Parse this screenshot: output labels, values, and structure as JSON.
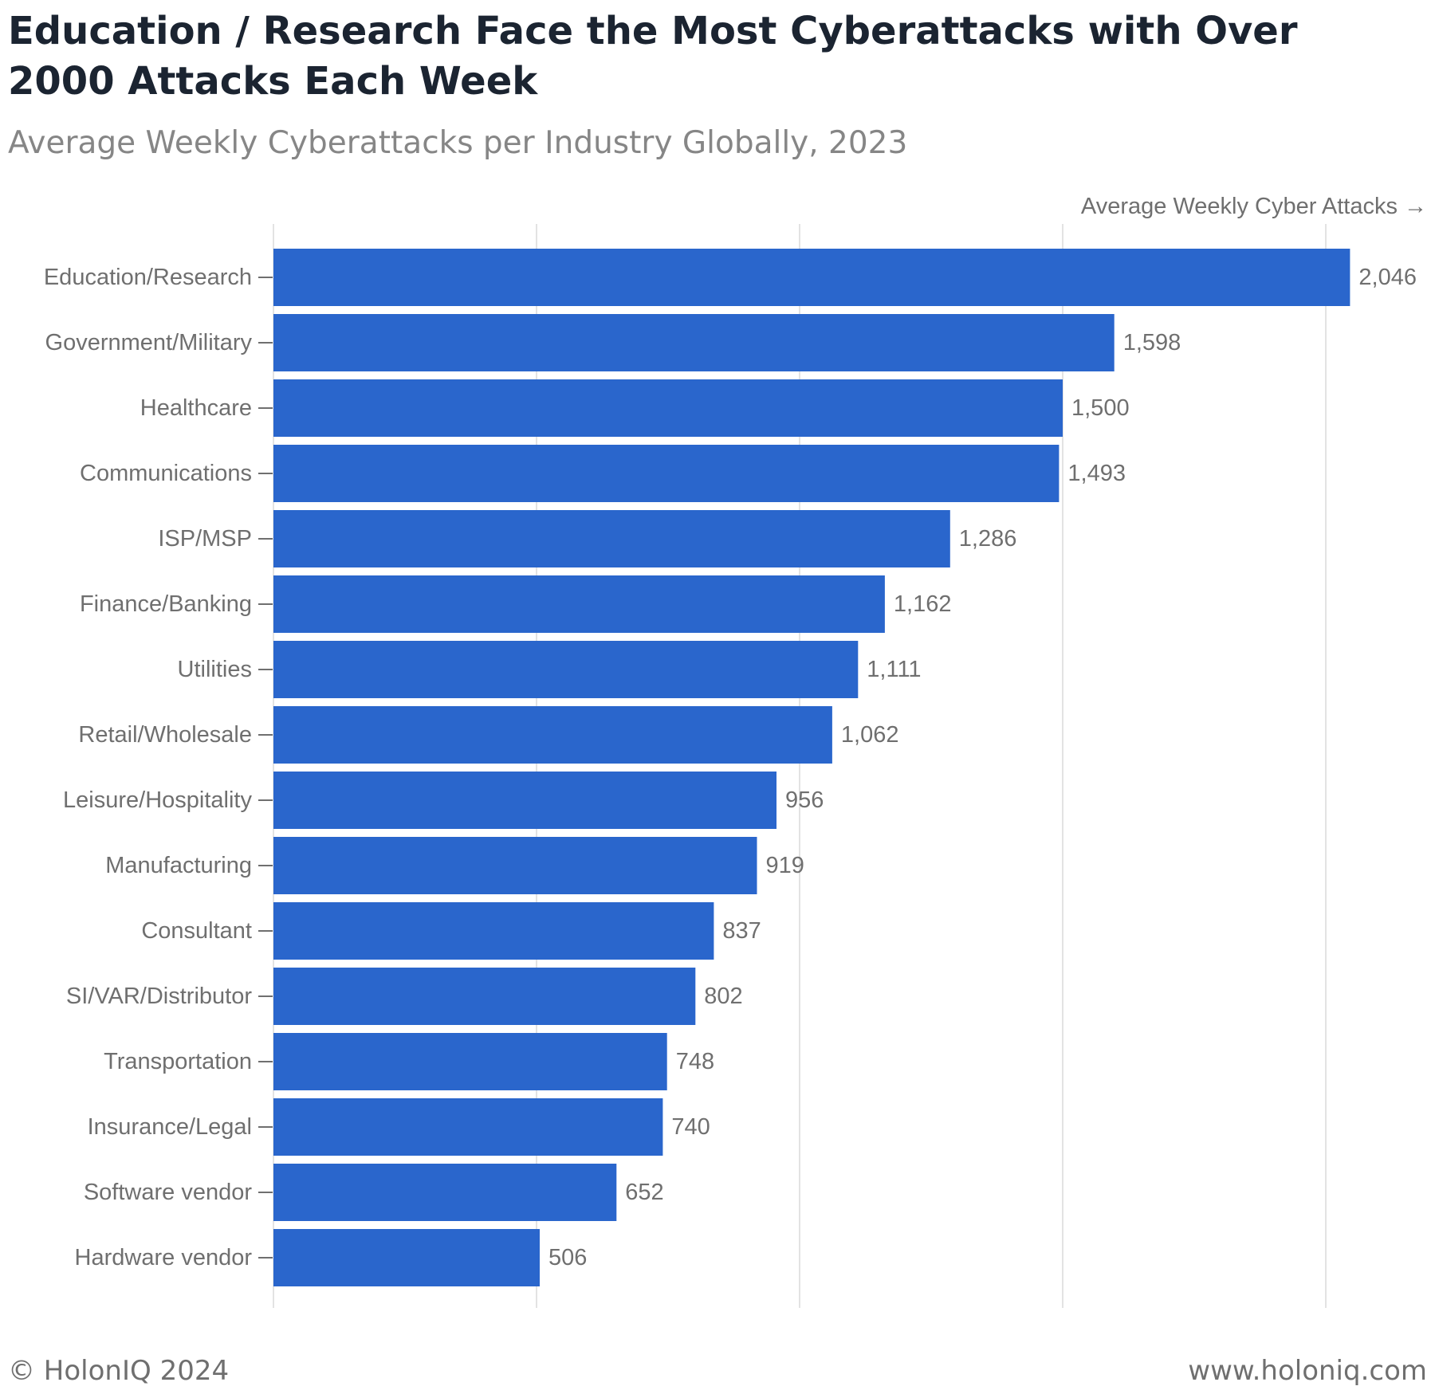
{
  "title": "Education / Research Face the Most Cyberattacks with Over 2000 Attacks Each Week",
  "subtitle": "Average Weekly Cyberattacks per Industry Globally, 2023",
  "footer": {
    "copyright": "© HolonIQ 2024",
    "website": "www.holoniq.com"
  },
  "colors": {
    "bar": "#2a66cc",
    "value_label": "#6f6f6f",
    "tick_label": "#6f6f6f",
    "axis_title": "#6f6f6f",
    "gridline": "#e3e3e3",
    "title": "#1b2431",
    "subtitle": "#868686"
  },
  "chart_data": {
    "type": "bar",
    "orientation": "horizontal",
    "xlabel": "Average Weekly Cyber Attacks →",
    "ylabel": "",
    "xlim": [
      0,
      2000
    ],
    "grid": true,
    "legend": "none",
    "categories": [
      "Education/Research",
      "Government/Military",
      "Healthcare",
      "Communications",
      "ISP/MSP",
      "Finance/Banking",
      "Utilities",
      "Retail/Wholesale",
      "Leisure/Hospitality",
      "Manufacturing",
      "Consultant",
      "SI/VAR/Distributor",
      "Transportation",
      "Insurance/Legal",
      "Software vendor",
      "Hardware vendor"
    ],
    "values": [
      2046,
      1598,
      1500,
      1493,
      1286,
      1162,
      1111,
      1062,
      956,
      919,
      837,
      802,
      748,
      740,
      652,
      506
    ],
    "value_labels": [
      "2,046",
      "1,598",
      "1,500",
      "1,493",
      "1,286",
      "1,162",
      "1,111",
      "1,062",
      "956",
      "919",
      "837",
      "802",
      "748",
      "740",
      "652",
      "506"
    ],
    "gridline_values": [
      0,
      500,
      1000,
      1500,
      2000
    ]
  }
}
